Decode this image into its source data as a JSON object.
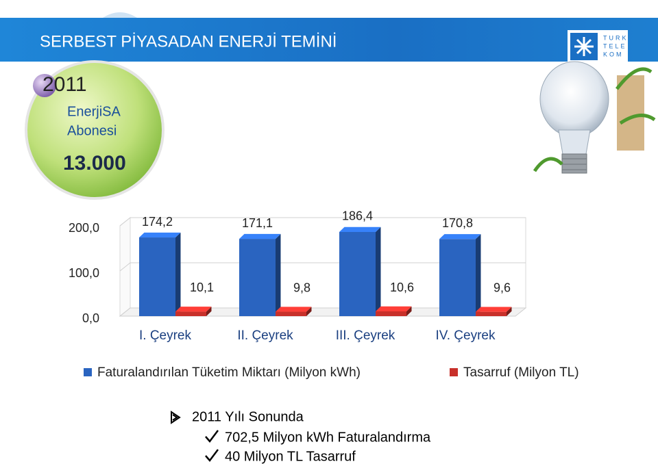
{
  "header": {
    "title": "SERBEST PİYASADAN ENERJİ TEMİNİ",
    "logo": [
      "TURK",
      "TELE",
      "KOM"
    ]
  },
  "badge": {
    "year": "2011",
    "line1": "EnerjiSA",
    "line2": "Abonesi",
    "count": "13.000"
  },
  "chart_data": {
    "type": "bar3d",
    "categories": [
      "I. Çeyrek",
      "II. Çeyrek",
      "III. Çeyrek",
      "IV. Çeyrek"
    ],
    "series": [
      {
        "name": "Faturalandırılan Tüketim Miktarı (Milyon kWh)",
        "color": "#2a64c0",
        "values": [
          174.2,
          171.1,
          186.4,
          170.8
        ],
        "value_labels": [
          "174,2",
          "171,1",
          "186,4",
          "170,8"
        ]
      },
      {
        "name": "Tasarruf (Milyon TL)",
        "color": "#c8302a",
        "values": [
          10.1,
          9.8,
          10.6,
          9.6
        ],
        "value_labels": [
          "10,1",
          "9,8",
          "10,6",
          "9,6"
        ]
      }
    ],
    "ylim": [
      0,
      200
    ],
    "yticks": [
      {
        "value": 0,
        "label": "0,0"
      },
      {
        "value": 100,
        "label": "100,0"
      },
      {
        "value": 200,
        "label": "200,0"
      }
    ],
    "grid": true,
    "legend": "bottom"
  },
  "notes": {
    "heading": "2011 Yılı Sonunda",
    "items": [
      "702,5 Milyon kWh Faturalandırma",
      "40 Milyon TL Tasarruf"
    ]
  }
}
